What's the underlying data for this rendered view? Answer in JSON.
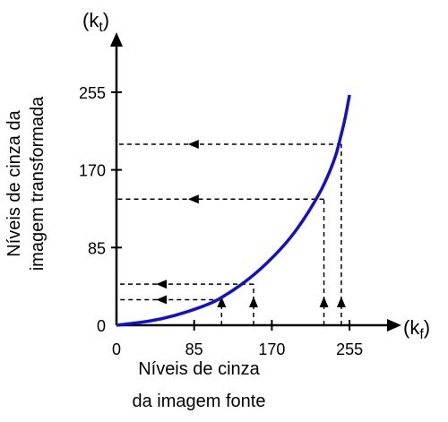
{
  "chart_data": {
    "type": "line",
    "title": "",
    "xlabel_line1": "Níveis de cinza",
    "xlabel_line2": "da imagem fonte",
    "ylabel_line1": "Níveis de cinza da",
    "ylabel_line2": "imagem transformada",
    "x_axis_symbol": "(kf)",
    "y_axis_symbol": "(kt)",
    "xlim": [
      0,
      300
    ],
    "ylim": [
      0,
      300
    ],
    "xticks": [
      0,
      85,
      170,
      255
    ],
    "yticks": [
      0,
      85,
      170,
      255
    ],
    "grid": false,
    "curve_color": "#1010d0",
    "series": [
      {
        "x": [
          0,
          50,
          100,
          120,
          150,
          180,
          200,
          220,
          230,
          240,
          245,
          250,
          255
        ],
        "y": [
          0,
          6,
          22,
          33,
          54,
          83,
          108,
          140,
          160,
          185,
          205,
          225,
          252
        ]
      }
    ],
    "mappings": [
      {
        "x": 115,
        "y": 28
      },
      {
        "x": 150,
        "y": 45
      },
      {
        "x": 227,
        "y": 138
      },
      {
        "x": 246,
        "y": 198
      }
    ]
  }
}
